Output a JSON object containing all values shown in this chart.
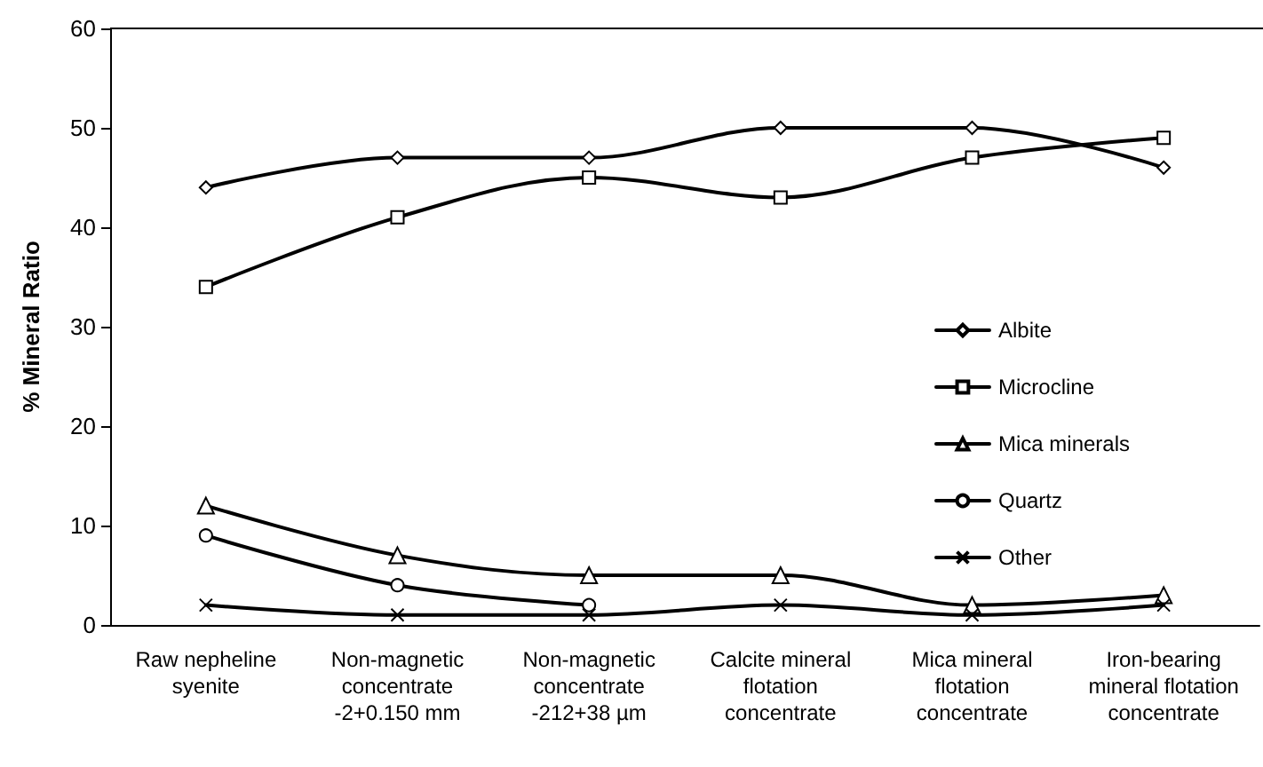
{
  "chart_data": {
    "type": "line",
    "ylabel": "% Mineral Ratio",
    "categories": [
      "Raw nepheline\nsyenite",
      "Non-magnetic\nconcentrate\n-2+0.150 mm",
      "Non-magnetic\nconcentrate\n-212+38 µm",
      "Calcite mineral\nflotation\nconcentrate",
      "Mica mineral\nflotation\nconcentrate",
      "Iron-bearing\nmineral flotation\nconcentrate"
    ],
    "series": [
      {
        "name": "Albite",
        "color": "#000000",
        "marker": "diamond",
        "values": [
          44,
          47,
          47,
          50,
          50,
          46
        ]
      },
      {
        "name": "Microcline",
        "color": "#000000",
        "marker": "square",
        "values": [
          34,
          41,
          45,
          43,
          47,
          49
        ]
      },
      {
        "name": "Mica minerals",
        "color": "#000000",
        "marker": "triangle",
        "values": [
          12,
          7,
          5,
          5,
          2,
          3
        ]
      },
      {
        "name": "Quartz",
        "color": "#000000",
        "marker": "circle",
        "values": [
          9,
          4,
          2,
          null,
          null,
          null
        ]
      },
      {
        "name": "Other",
        "color": "#000000",
        "marker": "cross",
        "values": [
          2,
          1,
          1,
          2,
          1,
          2
        ]
      }
    ],
    "ylim": [
      0,
      60
    ],
    "yticks": [
      0,
      10,
      20,
      30,
      40,
      50,
      60
    ],
    "grid": false,
    "legend": "right",
    "line_style": "solid"
  }
}
